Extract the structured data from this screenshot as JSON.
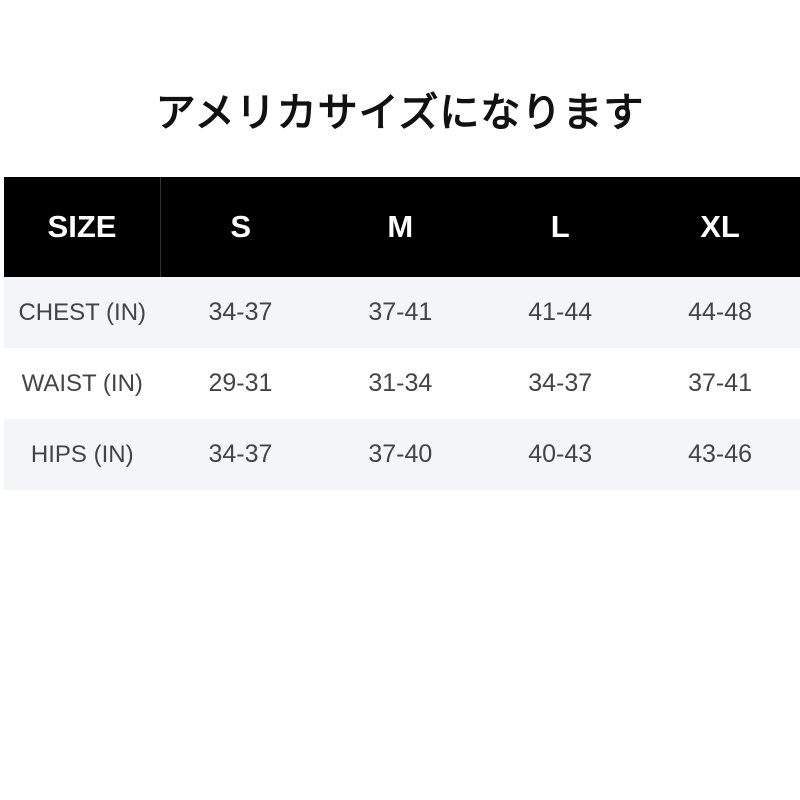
{
  "title": "アメリカサイズになります",
  "table": {
    "headers": [
      "SIZE",
      "S",
      "M",
      "L",
      "XL"
    ],
    "rows": [
      {
        "label": "CHEST (IN)",
        "values": [
          "34-37",
          "37-41",
          "41-44",
          "44-48"
        ]
      },
      {
        "label": "WAIST (IN)",
        "values": [
          "29-31",
          "31-34",
          "34-37",
          "37-41"
        ]
      },
      {
        "label": "HIPS (IN)",
        "values": [
          "34-37",
          "37-40",
          "40-43",
          "43-46"
        ]
      }
    ]
  },
  "colors": {
    "header_bg": "#000000",
    "row_shade": "#f4f5f7",
    "text": "#444444"
  }
}
